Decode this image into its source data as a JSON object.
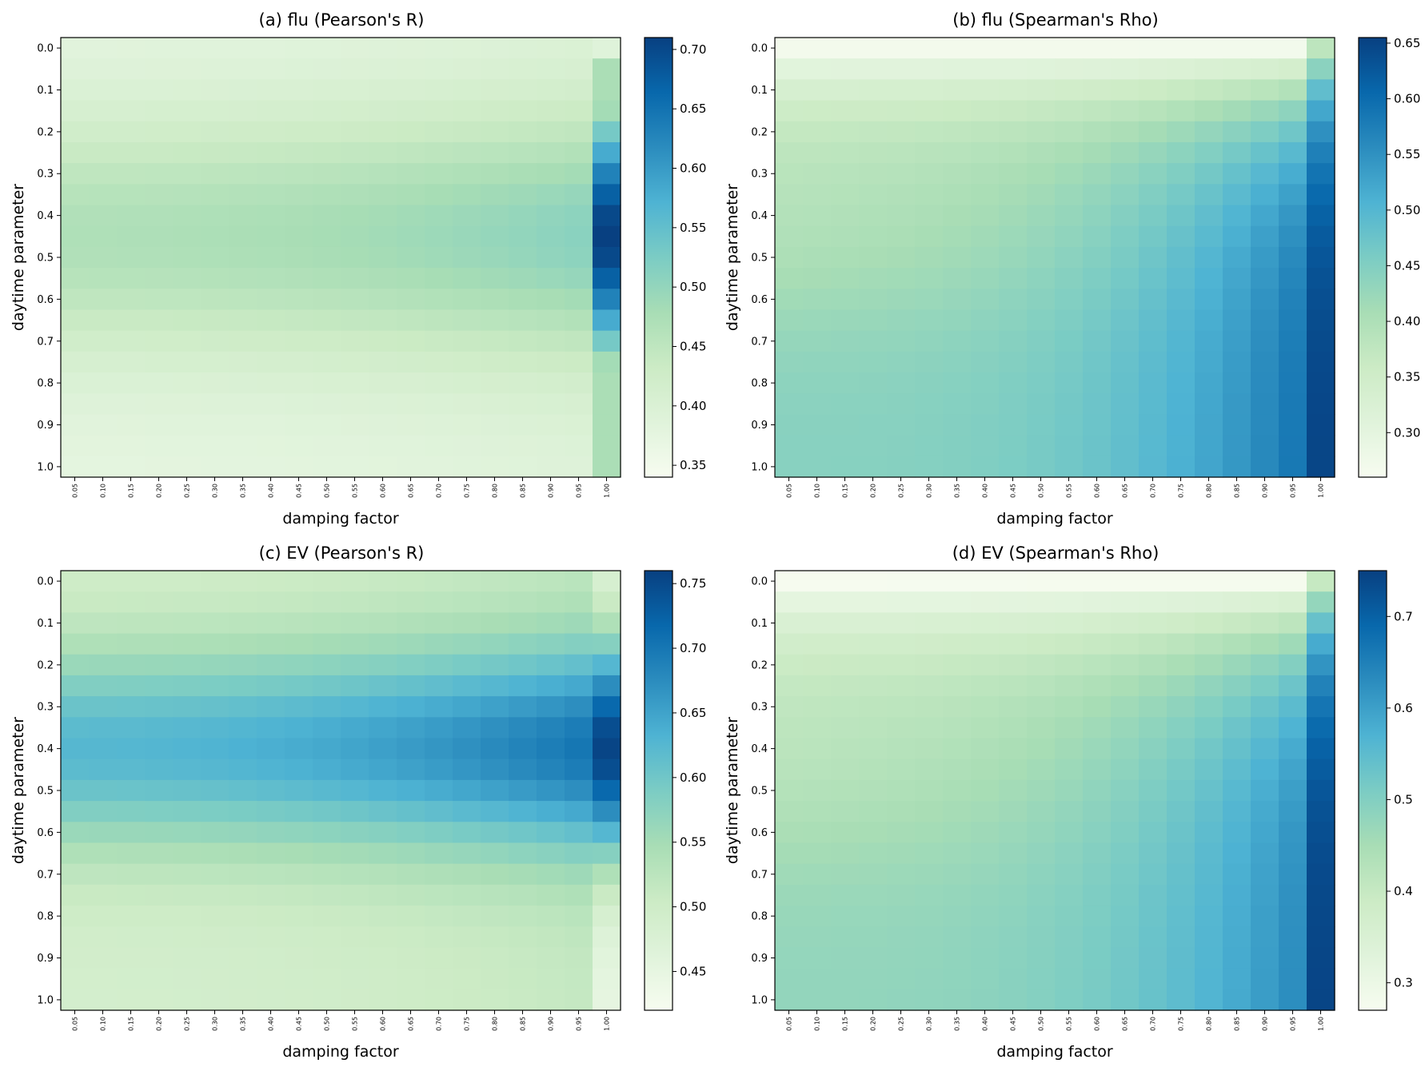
{
  "chart_data": [
    {
      "type": "heatmap",
      "title": "(a) flu (Pearson's R)",
      "xlabel": "damping factor",
      "ylabel": "daytime parameter",
      "colormap": "GnBu",
      "xticks": [
        "0.05",
        "0.10",
        "0.15",
        "0.20",
        "0.25",
        "0.30",
        "0.35",
        "0.40",
        "0.45",
        "0.50",
        "0.55",
        "0.60",
        "0.65",
        "0.70",
        "0.75",
        "0.80",
        "0.85",
        "0.90",
        "0.95",
        "1.00"
      ],
      "yticks": [
        "0.0",
        "0.1",
        "0.2",
        "0.3",
        "0.4",
        "0.5",
        "0.6",
        "0.7",
        "0.8",
        "0.9",
        "1.0"
      ],
      "rows": 21,
      "cols": 20,
      "vmin": 0.34,
      "vmax": 0.71,
      "colorbar_ticks": [
        "0.35",
        "0.40",
        "0.45",
        "0.50",
        "0.55",
        "0.60",
        "0.65",
        "0.70"
      ],
      "model": {
        "kind": "bump",
        "center": 0.45,
        "width": 0.3,
        "base": 0.375,
        "amp": 0.095,
        "ramp": 0.04,
        "rampExp": 2,
        "lastBase": 0.35,
        "lastAmp": 0.36,
        "lastWidth": 0.3,
        "lastFloor": 0.475
      }
    },
    {
      "type": "heatmap",
      "title": "(b) flu (Spearman's Rho)",
      "xlabel": "damping factor",
      "ylabel": "daytime parameter",
      "colormap": "GnBu",
      "xticks": [
        "0.05",
        "0.10",
        "0.15",
        "0.20",
        "0.25",
        "0.30",
        "0.35",
        "0.40",
        "0.45",
        "0.50",
        "0.55",
        "0.60",
        "0.65",
        "0.70",
        "0.75",
        "0.80",
        "0.85",
        "0.90",
        "0.95",
        "1.00"
      ],
      "yticks": [
        "0.0",
        "0.1",
        "0.2",
        "0.3",
        "0.4",
        "0.5",
        "0.6",
        "0.7",
        "0.8",
        "0.9",
        "1.0"
      ],
      "rows": 21,
      "cols": 20,
      "vmin": 0.26,
      "vmax": 0.655,
      "colorbar_ticks": [
        "0.30",
        "0.35",
        "0.40",
        "0.45",
        "0.50",
        "0.55",
        "0.60",
        "0.65"
      ],
      "model": {
        "kind": "sat",
        "rate": 5.0,
        "dip": 0.03,
        "dipCenter": 0.45,
        "dipWidth": 0.25,
        "base": 0.27,
        "amp": 0.175,
        "ramp": 0.14,
        "rampExp": 3,
        "lastBase": 0.38,
        "lastAmp": 0.27
      }
    },
    {
      "type": "heatmap",
      "title": "(c) EV (Pearson's R)",
      "xlabel": "damping factor",
      "ylabel": "daytime parameter",
      "colormap": "GnBu",
      "xticks": [
        "0.05",
        "0.10",
        "0.15",
        "0.20",
        "0.25",
        "0.30",
        "0.35",
        "0.40",
        "0.45",
        "0.50",
        "0.55",
        "0.60",
        "0.65",
        "0.70",
        "0.75",
        "0.80",
        "0.85",
        "0.90",
        "0.95",
        "1.00"
      ],
      "yticks": [
        "0.0",
        "0.1",
        "0.2",
        "0.3",
        "0.4",
        "0.5",
        "0.6",
        "0.7",
        "0.8",
        "0.9",
        "1.0"
      ],
      "rows": 21,
      "cols": 20,
      "vmin": 0.42,
      "vmax": 0.76,
      "colorbar_ticks": [
        "0.45",
        "0.50",
        "0.55",
        "0.60",
        "0.65",
        "0.70",
        "0.75"
      ],
      "model": {
        "kind": "bump",
        "center": 0.4,
        "width": 0.25,
        "base": 0.49,
        "amp": 0.135,
        "ramp": 0.075,
        "rampExp": 2,
        "lastBase": 0.45,
        "lastAmp": 0.305,
        "lastWidth": 0.27,
        "lastFloor": 0.0
      }
    },
    {
      "type": "heatmap",
      "title": "(d) EV (Spearman's Rho)",
      "xlabel": "damping factor",
      "ylabel": "daytime parameter",
      "colormap": "GnBu",
      "xticks": [
        "0.05",
        "0.10",
        "0.15",
        "0.20",
        "0.25",
        "0.30",
        "0.35",
        "0.40",
        "0.45",
        "0.50",
        "0.55",
        "0.60",
        "0.65",
        "0.70",
        "0.75",
        "0.80",
        "0.85",
        "0.90",
        "0.95",
        "1.00"
      ],
      "yticks": [
        "0.0",
        "0.1",
        "0.2",
        "0.3",
        "0.4",
        "0.5",
        "0.6",
        "0.7",
        "0.8",
        "0.9",
        "1.0"
      ],
      "rows": 21,
      "cols": 20,
      "vmin": 0.27,
      "vmax": 0.75,
      "colorbar_ticks": [
        "0.3",
        "0.4",
        "0.5",
        "0.6",
        "0.7"
      ],
      "model": {
        "kind": "sat",
        "rate": 5.0,
        "dip": 0.035,
        "dipCenter": 0.45,
        "dipWidth": 0.25,
        "base": 0.275,
        "amp": 0.205,
        "ramp": 0.15,
        "rampExp": 3,
        "lastBase": 0.4,
        "lastAmp": 0.345
      }
    }
  ]
}
